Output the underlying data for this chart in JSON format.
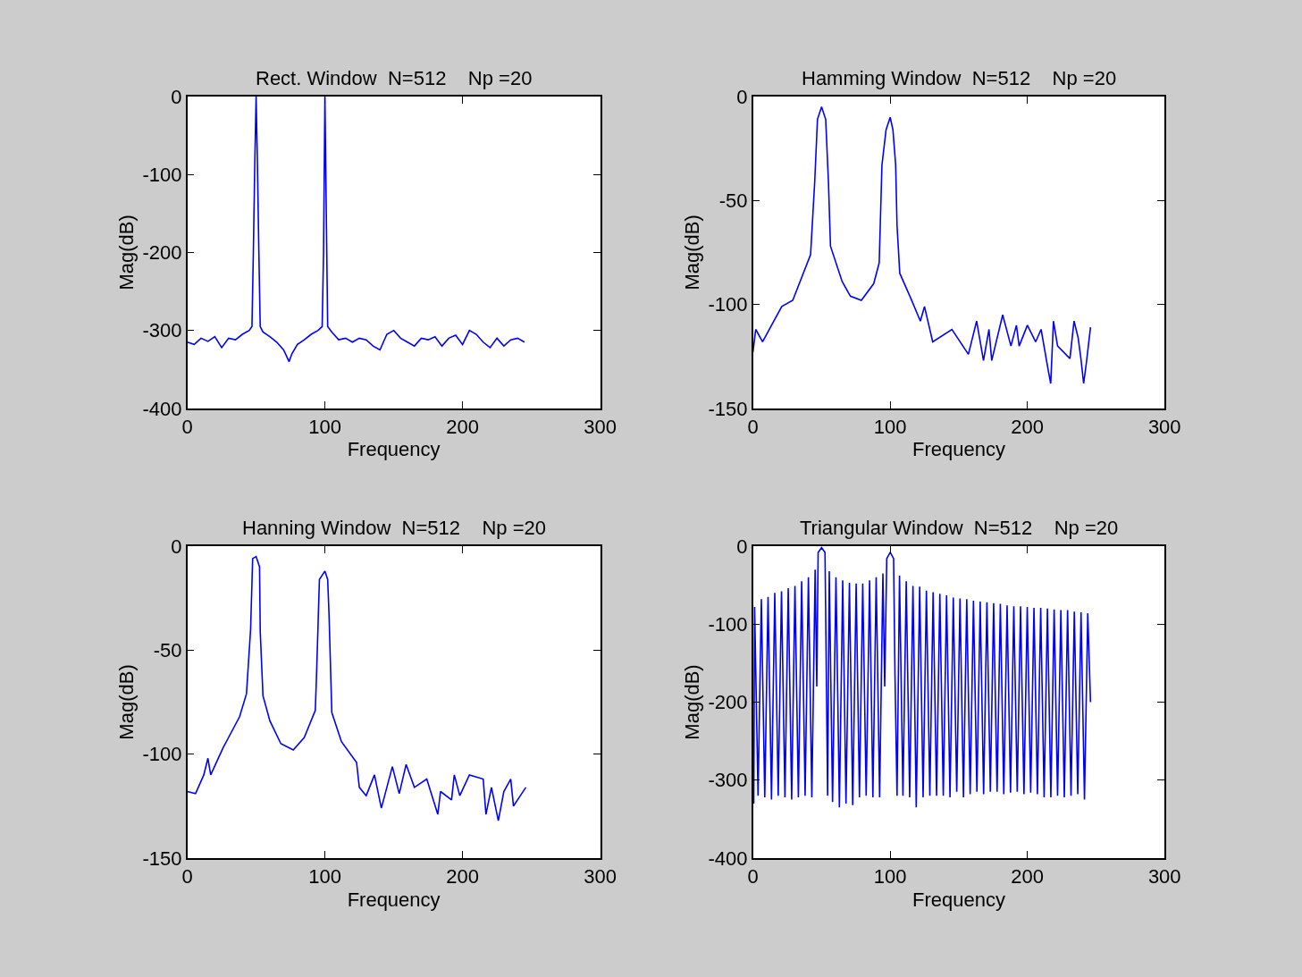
{
  "chart_data": [
    {
      "type": "line",
      "title": "Rect. Window  N=512    Np =20",
      "xlabel": "Frequency",
      "ylabel": "Mag(dB)",
      "xlim": [
        0,
        300
      ],
      "xticks": [
        0,
        100,
        200,
        300
      ],
      "ylim": [
        -400,
        0
      ],
      "yticks": [
        -400,
        -300,
        -200,
        -100,
        0
      ],
      "x": [
        0,
        5,
        10,
        15,
        20,
        25,
        30,
        35,
        40,
        45,
        47,
        48,
        49,
        50,
        51,
        52,
        53,
        55,
        60,
        65,
        70,
        74,
        76,
        80,
        85,
        90,
        95,
        98,
        99,
        100,
        101,
        102,
        105,
        110,
        115,
        120,
        125,
        130,
        135,
        140,
        145,
        150,
        155,
        160,
        165,
        170,
        175,
        180,
        185,
        190,
        195,
        200,
        205,
        210,
        215,
        220,
        225,
        230,
        235,
        240,
        245
      ],
      "series": [
        {
          "color": "#0000ff",
          "values": [
            -315,
            -318,
            -310,
            -314,
            -308,
            -322,
            -310,
            -312,
            -305,
            -300,
            -295,
            -200,
            -90,
            0,
            -90,
            -200,
            -295,
            -302,
            -308,
            -315,
            -325,
            -340,
            -330,
            -318,
            -312,
            -305,
            -300,
            -295,
            -200,
            0,
            -150,
            -295,
            -302,
            -312,
            -310,
            -315,
            -310,
            -312,
            -320,
            -325,
            -305,
            -300,
            -310,
            -315,
            -320,
            -310,
            -312,
            -308,
            -320,
            -310,
            -306,
            -318,
            -300,
            -305,
            -315,
            -322,
            -310,
            -320,
            -312,
            -310,
            -315
          ]
        }
      ]
    },
    {
      "type": "line",
      "title": "Hamming Window  N=512    Np =20",
      "xlabel": "Frequency",
      "ylabel": "Mag(dB)",
      "xlim": [
        0,
        300
      ],
      "xticks": [
        0,
        100,
        200,
        300
      ],
      "ylim": [
        -150,
        0
      ],
      "yticks": [
        -150,
        -100,
        -50,
        0
      ],
      "x": [
        0,
        2,
        7,
        21,
        29,
        42,
        45,
        47,
        50,
        53,
        55,
        56.5,
        65,
        71,
        79,
        88,
        92,
        94,
        97,
        100,
        102,
        104,
        105,
        107,
        115,
        122,
        125,
        131,
        145,
        157,
        163,
        168,
        172,
        174,
        182,
        188,
        192,
        194,
        200,
        206,
        210,
        215,
        217,
        219,
        222,
        231,
        234,
        237,
        239,
        241,
        243,
        246
      ],
      "series": [
        {
          "color": "#0000ff",
          "values": [
            -123,
            -112,
            -118,
            -101,
            -98,
            -76,
            -41,
            -11,
            -5,
            -11,
            -41,
            -72,
            -89,
            -96,
            -98,
            -90,
            -80,
            -33,
            -16,
            -10,
            -16,
            -33,
            -62,
            -85,
            -97,
            -108,
            -101,
            -118,
            -112,
            -124,
            -108,
            -127,
            -112,
            -127,
            -105,
            -120,
            -110,
            -120,
            -110,
            -118,
            -112,
            -131,
            -138,
            -108,
            -120,
            -126,
            -108,
            -116,
            -126,
            -138,
            -128,
            -111
          ]
        }
      ]
    },
    {
      "type": "line",
      "title": "Hanning Window  N=512    Np =20",
      "xlabel": "Frequency",
      "ylabel": "Mag(dB)",
      "xlim": [
        0,
        300
      ],
      "xticks": [
        0,
        100,
        200,
        300
      ],
      "ylim": [
        -150,
        0
      ],
      "yticks": [
        -150,
        -100,
        -50,
        0
      ],
      "x": [
        0,
        6,
        12,
        15,
        17,
        26,
        38,
        43,
        46,
        47.5,
        50,
        52.5,
        53,
        55,
        60,
        68,
        77,
        85,
        93,
        94,
        96,
        100,
        102,
        103,
        105,
        112,
        123,
        125,
        130,
        136,
        141,
        149,
        154,
        159,
        165,
        174,
        182,
        184,
        192,
        194,
        198,
        205,
        215,
        217,
        221,
        226,
        230,
        235,
        237,
        242,
        246
      ],
      "series": [
        {
          "color": "#0000ff",
          "values": [
            -118,
            -119,
            -110,
            -102,
            -110,
            -97,
            -82,
            -71,
            -40,
            -6,
            -5,
            -10,
            -41,
            -72,
            -84,
            -95,
            -98,
            -92,
            -79,
            -60,
            -16,
            -12,
            -16,
            -33,
            -80,
            -94,
            -104,
            -116,
            -120,
            -110,
            -126,
            -106,
            -119,
            -105,
            -116,
            -112,
            -129,
            -118,
            -122,
            -110,
            -120,
            -110,
            -112,
            -129,
            -116,
            -132,
            -118,
            -112,
            -125,
            -120,
            -116
          ]
        }
      ]
    },
    {
      "type": "line",
      "title": "Triangular Window  N=512    Np =20",
      "xlabel": "Frequency",
      "ylabel": "Mag(dB)",
      "xlim": [
        0,
        300
      ],
      "xticks": [
        0,
        100,
        200,
        300
      ],
      "ylim": [
        -400,
        0
      ],
      "yticks": [
        -400,
        -300,
        -200,
        -100,
        0
      ],
      "x": [
        0.6,
        1.2,
        3.7,
        6.1,
        8.6,
        11,
        13.5,
        15.9,
        18.4,
        20.8,
        23.3,
        25.7,
        28.2,
        30.6,
        33.1,
        35.5,
        38,
        40.4,
        42.9,
        45.3,
        46.5,
        47.5,
        50,
        52.5,
        53.5,
        54.4,
        55.6,
        58,
        60.5,
        63,
        65.4,
        67.8,
        70.3,
        72.7,
        75.2,
        77.6,
        80,
        82.5,
        85,
        87.4,
        89.8,
        92.3,
        94.7,
        96,
        97.5,
        100,
        102.5,
        103.5,
        105,
        106.8,
        109.3,
        111.7,
        114.2,
        116.6,
        119,
        121.5,
        124,
        126.4,
        128.9,
        131.3,
        133.8,
        136.2,
        138.7,
        141.1,
        143.6,
        146,
        148.5,
        150.9,
        153.4,
        155.8,
        158.3,
        160.7,
        163.2,
        165.6,
        168.1,
        170.5,
        173,
        175.4,
        177.9,
        180.3,
        182.8,
        185.2,
        187.7,
        190.1,
        192.6,
        195,
        197.5,
        199.9,
        202.4,
        204.8,
        207.3,
        209.7,
        212.2,
        214.6,
        217.1,
        219.5,
        222,
        224.4,
        226.9,
        229.3,
        231.8,
        234.2,
        236.7,
        239.1,
        241.6,
        244,
        246
      ],
      "series": [
        {
          "color": "#0000ff",
          "values": [
            -330,
            -78,
            -320,
            -68,
            -322,
            -65,
            -325,
            -60,
            -320,
            -58,
            -322,
            -54,
            -325,
            -51,
            -322,
            -45,
            -320,
            -40,
            -322,
            -30,
            -180,
            -8,
            -2,
            -8,
            -170,
            -320,
            -32,
            -328,
            -40,
            -335,
            -44,
            -330,
            -47,
            -332,
            -48,
            -322,
            -48,
            -320,
            -44,
            -322,
            -40,
            -322,
            -35,
            -180,
            -16,
            -8,
            -16,
            -165,
            -320,
            -38,
            -320,
            -45,
            -322,
            -51,
            -335,
            -52,
            -322,
            -57,
            -320,
            -59,
            -320,
            -61,
            -320,
            -63,
            -322,
            -66,
            -315,
            -67,
            -322,
            -68,
            -318,
            -70,
            -315,
            -71,
            -318,
            -72,
            -315,
            -73,
            -315,
            -74,
            -318,
            -76,
            -316,
            -77,
            -315,
            -77,
            -318,
            -78,
            -316,
            -79,
            -318,
            -79,
            -322,
            -80,
            -322,
            -81,
            -320,
            -82,
            -322,
            -82,
            -320,
            -84,
            -318,
            -85,
            -325,
            -86,
            -200
          ]
        }
      ]
    }
  ]
}
